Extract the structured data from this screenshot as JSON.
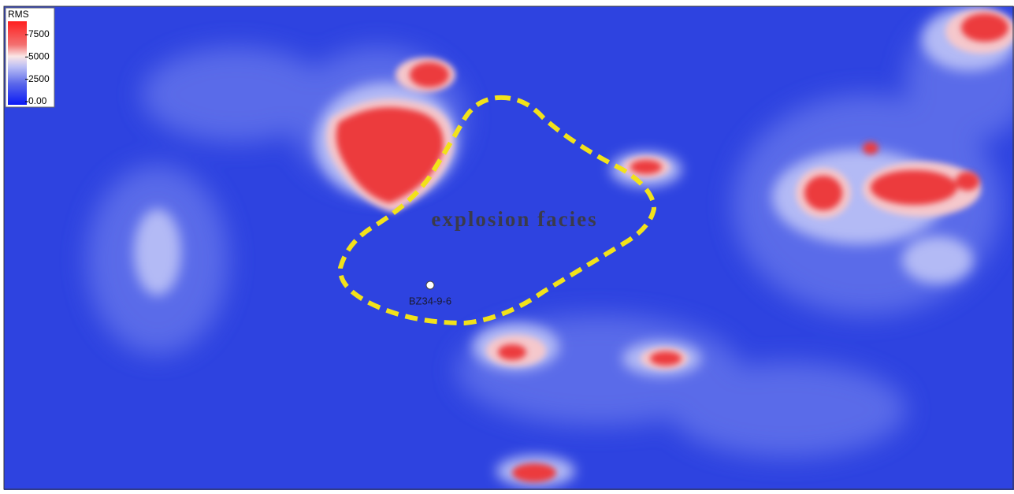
{
  "legend": {
    "title": "RMS",
    "range": [
      0,
      9000
    ],
    "ticks": [
      7500,
      5000,
      2500,
      {
        "value": 0,
        "label": "0.00"
      }
    ]
  },
  "annotations": {
    "facies_label": "explosion facies",
    "well_label": "BZ34-9-6"
  }
}
